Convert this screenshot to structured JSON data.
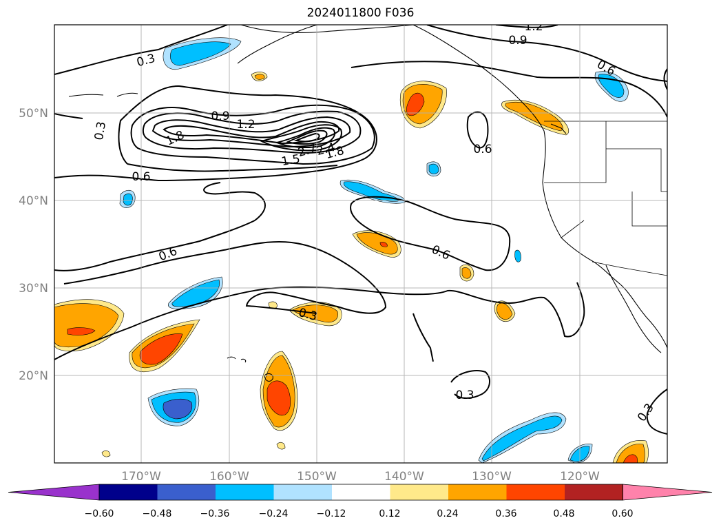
{
  "title": "2024011800 F036",
  "lat_labels": [
    "50°N",
    "40°N",
    "30°N",
    "20°N"
  ],
  "lon_labels": [
    "170°W",
    "160°W",
    "150°W",
    "140°W",
    "130°W",
    "120°W"
  ],
  "colorbar": {
    "ticks": [
      "−0.60",
      "−0.48",
      "−0.36",
      "−0.24",
      "−0.12",
      "0.12",
      "0.24",
      "0.36",
      "0.48",
      "0.60"
    ],
    "colors": [
      "#9932cc",
      "#00008b",
      "#3a5fcd",
      "#00bfff",
      "#b0e2ff",
      "#ffffff",
      "#ffe98a",
      "#ffa500",
      "#ff4500",
      "#b22222",
      "#ff82ab"
    ]
  },
  "contour_labels": [
    "1.2",
    "0.9",
    "0.3",
    "0.6",
    "0.3",
    "0.9",
    "1.2",
    "1.8",
    "0.6",
    "2.7",
    "2.4",
    "1.5",
    "1.8",
    "0.6",
    "0.6",
    "0.6",
    "0.3",
    "0.3",
    "0.3"
  ]
}
